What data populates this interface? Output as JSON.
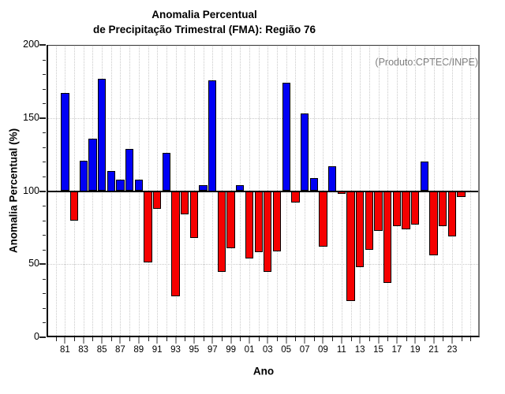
{
  "chart_data": {
    "type": "bar",
    "title_line1": "Anomalia Percentual",
    "title_line2": "de Precipitação Trimestral (FMA): Região 76",
    "annotation": "(Produto:CPTEC/INPE)",
    "xlabel": "Ano",
    "ylabel": "Anomalia Percentual (%)",
    "ylim": [
      0,
      200
    ],
    "y_ticks": [
      0,
      50,
      100,
      150,
      200
    ],
    "y_minor_step": 10,
    "grid_y_values": [
      50,
      150
    ],
    "baseline": 100,
    "x_tick_years": [
      1981,
      1983,
      1985,
      1987,
      1989,
      1991,
      1993,
      1995,
      1997,
      1999,
      2001,
      2003,
      2005,
      2007,
      2009,
      2011,
      2013,
      2015,
      2017,
      2019,
      2021,
      2023
    ],
    "x_tick_labels": [
      "81",
      "83",
      "85",
      "87",
      "89",
      "91",
      "93",
      "95",
      "97",
      "99",
      "01",
      "03",
      "05",
      "07",
      "09",
      "11",
      "13",
      "15",
      "17",
      "19",
      "21",
      "23"
    ],
    "years": [
      1981,
      1982,
      1983,
      1984,
      1985,
      1986,
      1987,
      1988,
      1989,
      1990,
      1991,
      1992,
      1993,
      1994,
      1995,
      1996,
      1997,
      1998,
      1999,
      2000,
      2001,
      2002,
      2003,
      2004,
      2005,
      2006,
      2007,
      2008,
      2009,
      2010,
      2011,
      2012,
      2013,
      2014,
      2015,
      2016,
      2017,
      2018,
      2019,
      2020,
      2021,
      2022,
      2023,
      2024
    ],
    "values": [
      167,
      80,
      121,
      136,
      177,
      114,
      108,
      129,
      108,
      51,
      88,
      126,
      28,
      84,
      68,
      104,
      176,
      45,
      61,
      104,
      54,
      58,
      45,
      59,
      174,
      92,
      153,
      109,
      62,
      117,
      98,
      25,
      48,
      60,
      73,
      37,
      76,
      74,
      77,
      120,
      56,
      76,
      69,
      96
    ],
    "colors": {
      "above_baseline": "#0000f5",
      "below_baseline": "#f50000",
      "annotation": "#7f7f7f",
      "grid": "#c9c9c9"
    },
    "grid": "dotted",
    "legend": "none"
  }
}
